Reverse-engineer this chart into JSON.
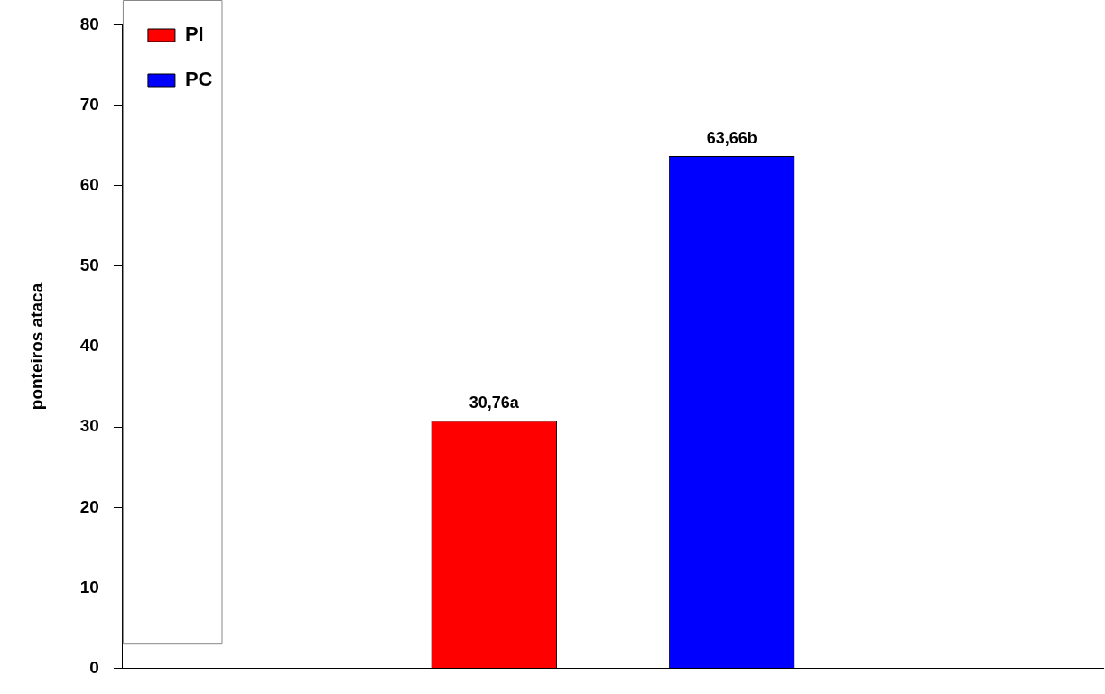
{
  "chart_data": {
    "type": "bar",
    "ylabel": "ponteiros ataca",
    "categories": [
      null
    ],
    "series": [
      {
        "name": "PI",
        "color": "#ff0000",
        "values": [
          30.76
        ],
        "value_labels": [
          "30,76a"
        ]
      },
      {
        "name": "PC",
        "color": "#0000ff",
        "values": [
          63.66
        ],
        "value_labels": [
          "63,66b"
        ]
      }
    ],
    "ylim": [
      0,
      80
    ],
    "yticks": [
      0,
      10,
      20,
      30,
      40,
      50,
      60,
      70,
      80
    ],
    "grid": false,
    "legend": "top left"
  }
}
